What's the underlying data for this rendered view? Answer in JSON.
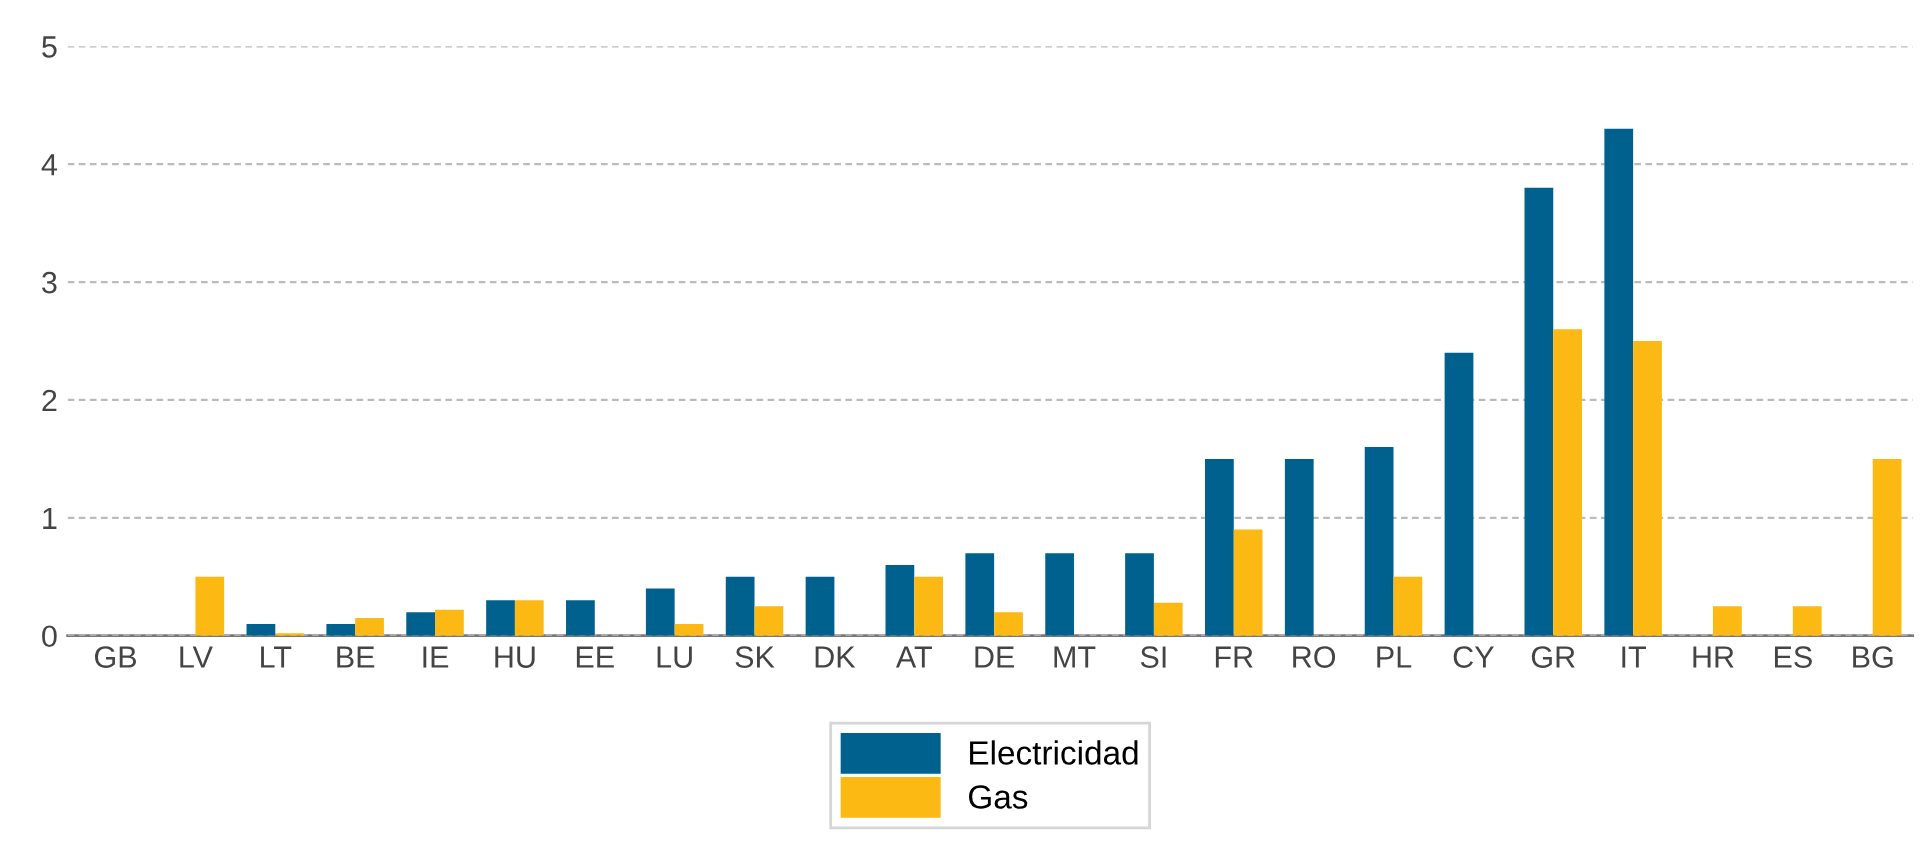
{
  "chart_data": {
    "type": "bar",
    "categories": [
      "GB",
      "LV",
      "LT",
      "BE",
      "IE",
      "HU",
      "EE",
      "LU",
      "SK",
      "DK",
      "AT",
      "DE",
      "MT",
      "SI",
      "FR",
      "RO",
      "PL",
      "CY",
      "GR",
      "IT",
      "HR",
      "ES",
      "BG"
    ],
    "series": [
      {
        "name": "Electricidad",
        "color": "#00618e",
        "values": [
          0,
          0,
          0.1,
          0.1,
          0.2,
          0.3,
          0.3,
          0.4,
          0.5,
          0.5,
          0.6,
          0.7,
          0.7,
          0.7,
          1.5,
          1.5,
          1.6,
          2.4,
          3.8,
          4.3,
          0,
          0,
          0
        ]
      },
      {
        "name": "Gas",
        "color": "#fdb913",
        "values": [
          0,
          0.5,
          0.02,
          0.15,
          0.22,
          0.3,
          0,
          0.1,
          0.25,
          0,
          0.5,
          0.2,
          0,
          0.28,
          0.9,
          0,
          0.5,
          0,
          2.6,
          2.5,
          0.25,
          0.25,
          1.5
        ]
      }
    ],
    "ylim": [
      0,
      5
    ],
    "yticks": [
      0,
      1,
      2,
      3,
      4,
      5
    ],
    "grid": "y",
    "legend": "bottom"
  }
}
